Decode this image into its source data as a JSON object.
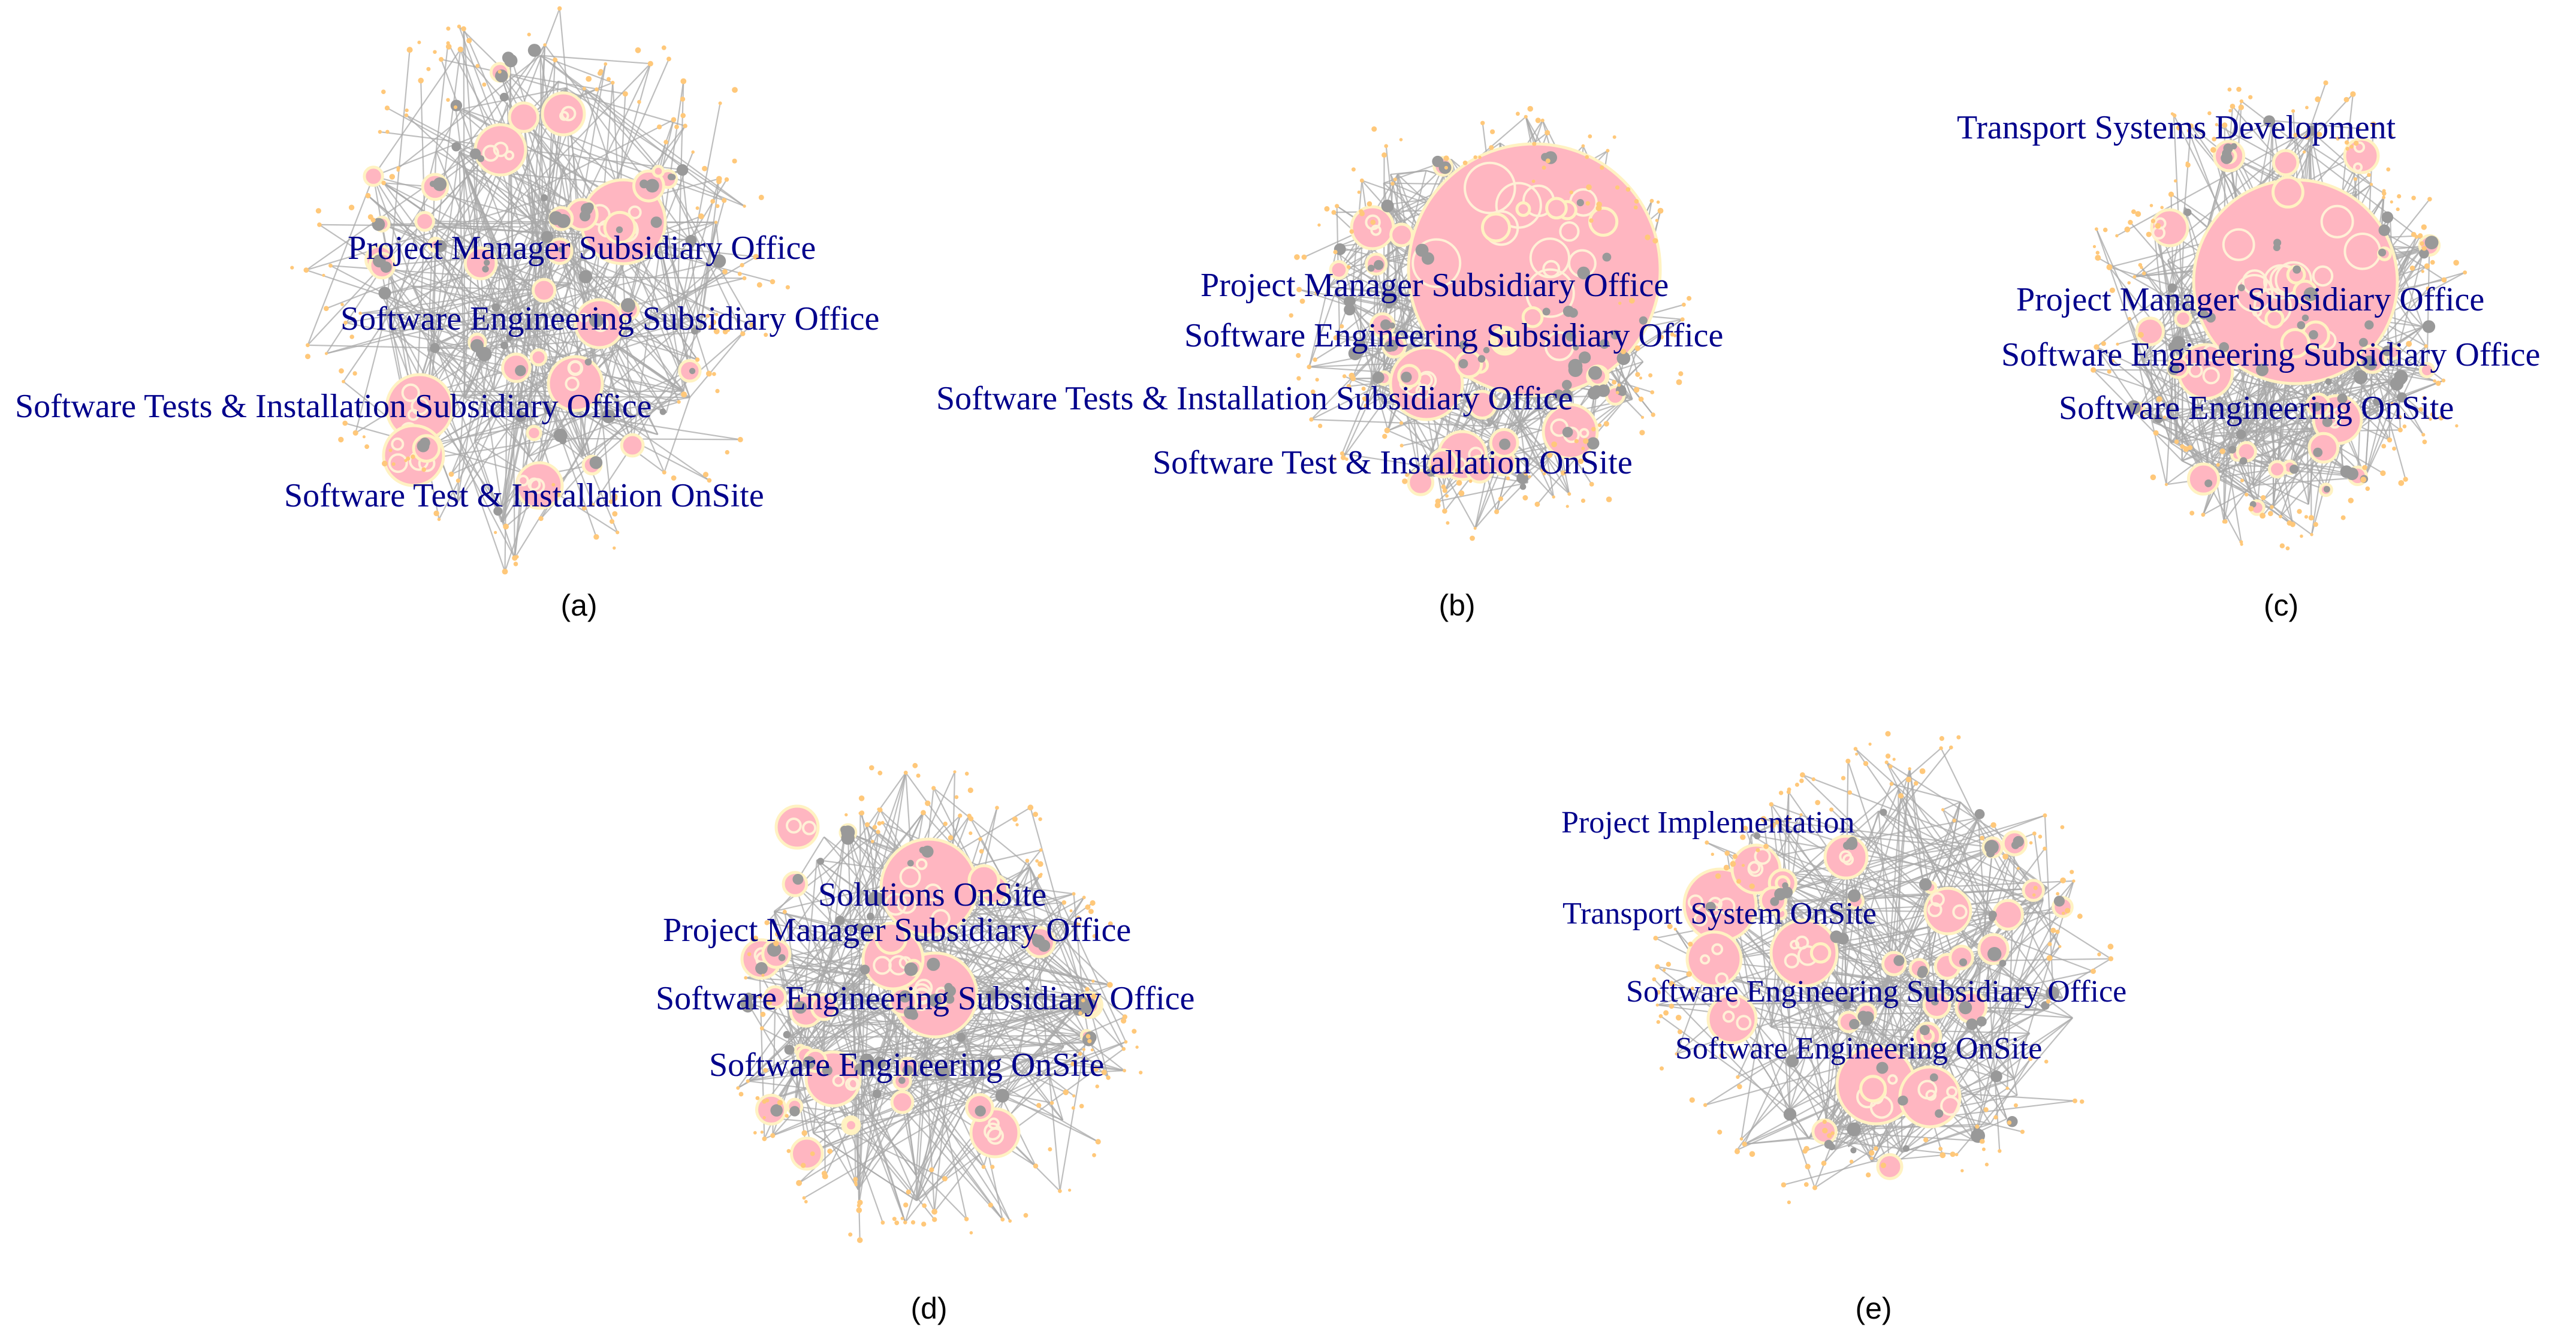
{
  "panels": [
    {
      "caption": "(a)",
      "labels": [
        "Project Manager Subsidiary Office",
        "Software Engineering Subsidiary Office",
        "Software Tests & Installation Subsidiary Office",
        "Software Test & Installation OnSite"
      ]
    },
    {
      "caption": "(b)",
      "labels": [
        "Project Manager Subsidiary Office",
        "Software Engineering Subsidiary Office",
        "Software Tests & Installation Subsidiary Office",
        "Software Test & Installation OnSite"
      ]
    },
    {
      "caption": "(c)",
      "labels": [
        "Transport Systems Development",
        "Project Manager Subsidiary Office",
        "Software Engineering Subsidiary Office",
        "Software Engineering OnSite"
      ]
    },
    {
      "caption": "(d)",
      "labels": [
        "Solutions OnSite",
        "Project Manager Subsidiary Office",
        "Software Engineering Subsidiary Office",
        "Software Engineering OnSite"
      ]
    },
    {
      "caption": "(e)",
      "labels": [
        "Project Implementation",
        "Transport System OnSite",
        "Software Engineering Subsidiary Office",
        "Software Engineering OnSite"
      ]
    }
  ],
  "colors": {
    "label_text": "#00008B",
    "node_fill": "#ffb6c1",
    "node_outline": "#fff2c2",
    "edge": "#a9a9a9",
    "hub_node": "#999999",
    "leaf_node": "#ffc87a"
  }
}
